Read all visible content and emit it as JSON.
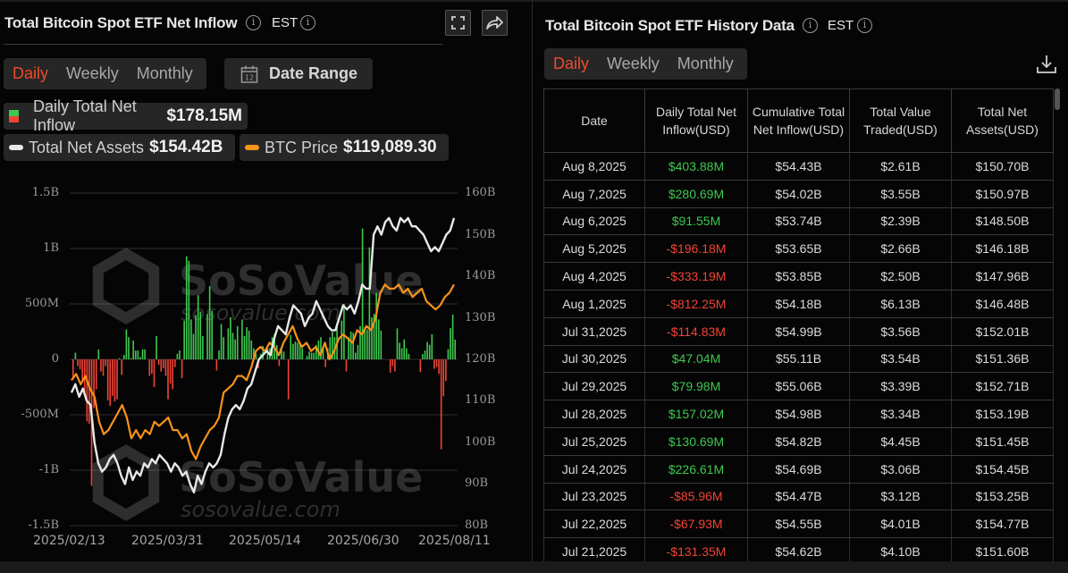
{
  "left_panel": {
    "title": "Total Bitcoin Spot ETF Net Inflow",
    "timezone": "EST",
    "period_tabs": [
      "Daily",
      "Weekly",
      "Monthly"
    ],
    "active_tab": "Daily",
    "date_range_label": "Date Range",
    "calendar_day": "12",
    "legend": {
      "inflow_label": "Daily Total Net Inflow",
      "inflow_value": "$178.15M",
      "assets_label": "Total Net Assets",
      "assets_value": "$154.42B",
      "btc_label": "BTC Price",
      "btc_value": "$119,089.30"
    }
  },
  "right_panel": {
    "title": "Total Bitcoin Spot ETF History Data",
    "timezone": "EST",
    "period_tabs": [
      "Daily",
      "Weekly",
      "Monthly"
    ],
    "active_tab": "Daily",
    "table": {
      "headers": [
        "Date",
        "Daily Total Net Inflow(USD)",
        "Cumulative Total Net Inflow(USD)",
        "Total Value Traded(USD)",
        "Total Net Assets(USD)"
      ],
      "rows": [
        [
          "Aug 8,2025",
          "$403.88M",
          "$54.43B",
          "$2.61B",
          "$150.70B"
        ],
        [
          "Aug 7,2025",
          "$280.69M",
          "$54.02B",
          "$3.55B",
          "$150.97B"
        ],
        [
          "Aug 6,2025",
          "$91.55M",
          "$53.74B",
          "$2.39B",
          "$148.50B"
        ],
        [
          "Aug 5,2025",
          "-$196.18M",
          "$53.65B",
          "$2.66B",
          "$146.18B"
        ],
        [
          "Aug 4,2025",
          "-$333.19M",
          "$53.85B",
          "$2.50B",
          "$147.96B"
        ],
        [
          "Aug 1,2025",
          "-$812.25M",
          "$54.18B",
          "$6.13B",
          "$146.48B"
        ],
        [
          "Jul 31,2025",
          "-$114.83M",
          "$54.99B",
          "$3.56B",
          "$152.01B"
        ],
        [
          "Jul 30,2025",
          "$47.04M",
          "$55.11B",
          "$3.54B",
          "$151.36B"
        ],
        [
          "Jul 29,2025",
          "$79.98M",
          "$55.06B",
          "$3.39B",
          "$152.71B"
        ],
        [
          "Jul 28,2025",
          "$157.02M",
          "$54.98B",
          "$3.34B",
          "$153.19B"
        ],
        [
          "Jul 25,2025",
          "$130.69M",
          "$54.82B",
          "$4.45B",
          "$151.45B"
        ],
        [
          "Jul 24,2025",
          "$226.61M",
          "$54.69B",
          "$3.06B",
          "$154.45B"
        ],
        [
          "Jul 23,2025",
          "-$85.96M",
          "$54.47B",
          "$3.12B",
          "$153.25B"
        ],
        [
          "Jul 22,2025",
          "-$67.93M",
          "$54.55B",
          "$4.01B",
          "$154.77B"
        ],
        [
          "Jul 21,2025",
          "-$131.35M",
          "$54.62B",
          "$4.10B",
          "$151.60B"
        ]
      ]
    }
  },
  "watermark": {
    "brand": "SoSoValue",
    "site": "sosovalue.com"
  },
  "colors": {
    "accent": "#f04a2c",
    "positive": "#3ec94f",
    "negative": "#f04436",
    "assets_line": "#e8e8e8",
    "btc_line": "#f7931a",
    "background": "#050505",
    "panel": "#262626"
  },
  "chart_data": {
    "type": "bar",
    "title": "Total Bitcoin Spot ETF Net Inflow",
    "x_ticks": [
      "2025/02/13",
      "2025/03/31",
      "2025/05/14",
      "2025/06/30",
      "2025/08/11"
    ],
    "left_axis": {
      "label": "Daily Total Net Inflow",
      "ticks": [
        "1.5B",
        "1B",
        "500M",
        "0",
        "-500M",
        "-1B",
        "-1.5B"
      ],
      "ylim": [
        -1.5,
        1.5
      ],
      "unit": "B USD"
    },
    "right_axis": {
      "label": "Total Net Assets",
      "ticks": [
        "160B",
        "150B",
        "140B",
        "130B",
        "120B",
        "110B",
        "100B",
        "90B",
        "80B"
      ],
      "ylim": [
        80,
        160
      ],
      "unit": "B USD"
    },
    "series": [
      {
        "name": "Daily Total Net Inflow",
        "type": "bar",
        "axis": "left",
        "values_millions": [
          -170,
          60,
          -60,
          -90,
          -200,
          -300,
          -560,
          -580,
          -1140,
          -440,
          -270,
          90,
          -110,
          -150,
          -60,
          -370,
          -420,
          -330,
          -380,
          -360,
          10,
          -140,
          40,
          270,
          200,
          10,
          170,
          80,
          80,
          20,
          90,
          90,
          0,
          -150,
          -130,
          -250,
          210,
          -50,
          -110,
          -80,
          -150,
          -360,
          -220,
          -270,
          -70,
          50,
          80,
          -170,
          350,
          930,
          890,
          360,
          230,
          400,
          580,
          430,
          210,
          0,
          410,
          660,
          440,
          0,
          -100,
          80,
          320,
          200,
          0,
          280,
          380,
          240,
          180,
          300,
          0,
          360,
          210,
          290,
          260,
          170,
          100,
          50,
          -80,
          50,
          120,
          0,
          100,
          100,
          200,
          230,
          130,
          -60,
          100,
          70,
          0,
          -360,
          220,
          140,
          160,
          150,
          140,
          100,
          0,
          30,
          70,
          60,
          60,
          130,
          170,
          200,
          100,
          -70,
          100,
          200,
          250,
          200,
          300,
          0,
          350,
          500,
          -110,
          200,
          250,
          240,
          60,
          130,
          300,
          1180,
          290,
          270,
          1010,
          380,
          410,
          600,
          360,
          260,
          0,
          0,
          0,
          -120,
          -60,
          -110,
          280,
          150,
          100,
          180,
          100,
          50,
          0,
          0,
          0,
          0,
          -115,
          47,
          80,
          157,
          131,
          227,
          -86,
          -68,
          -131,
          -812,
          -333,
          -196,
          92,
          281,
          404,
          178
        ],
        "positive_color": "#3ec94f",
        "negative_color": "#f04436"
      },
      {
        "name": "Total Net Assets",
        "type": "line",
        "axis": "right",
        "values_billions": [
          112,
          114,
          111,
          113,
          110,
          109,
          100,
          95,
          93,
          94,
          96,
          97,
          95,
          92,
          90,
          94,
          91,
          93,
          92,
          95,
          94,
          96,
          95,
          97,
          96,
          95,
          93,
          95,
          94,
          92,
          93,
          90,
          88,
          92,
          90,
          93,
          95,
          94,
          95,
          97,
          102,
          106,
          108,
          109,
          108,
          110,
          113,
          114,
          117,
          120,
          121,
          122,
          121,
          125,
          128,
          127,
          126,
          130,
          133,
          132,
          131,
          128,
          130,
          131,
          134,
          132,
          130,
          128,
          127,
          127,
          130,
          133,
          132,
          133,
          131,
          134,
          138,
          137,
          137,
          150,
          152,
          150,
          153,
          154,
          152,
          151,
          154,
          153,
          154,
          152,
          152,
          151,
          150,
          148,
          146,
          147,
          146,
          148,
          150,
          151,
          154
        ],
        "color": "#e8e8e8"
      },
      {
        "name": "BTC Price",
        "type": "line",
        "axis": "hidden",
        "values_usd": [
          96000,
          97500,
          95000,
          97000,
          94000,
          92000,
          86000,
          83000,
          84000,
          86000,
          88000,
          90000,
          87000,
          82000,
          84000,
          82000,
          84000,
          83000,
          86000,
          85000,
          86000,
          87000,
          84000,
          84000,
          82000,
          83000,
          79000,
          77000,
          80000,
          82000,
          84000,
          85000,
          87000,
          93000,
          94000,
          95000,
          97000,
          97000,
          96000,
          99000,
          103000,
          104000,
          103000,
          105000,
          104000,
          102000,
          105000,
          107000,
          109000,
          106000,
          104000,
          105000,
          103000,
          104000,
          102000,
          105000,
          101000,
          103000,
          106000,
          107000,
          106000,
          105000,
          108000,
          107000,
          109000,
          108000,
          111000,
          117000,
          119000,
          118000,
          118000,
          119000,
          117000,
          118000,
          116000,
          117000,
          118000,
          115000,
          114000,
          113000,
          114000,
          116000,
          117000,
          119000
        ],
        "color": "#f7931a"
      }
    ],
    "grid": true,
    "legend_position": "top"
  }
}
